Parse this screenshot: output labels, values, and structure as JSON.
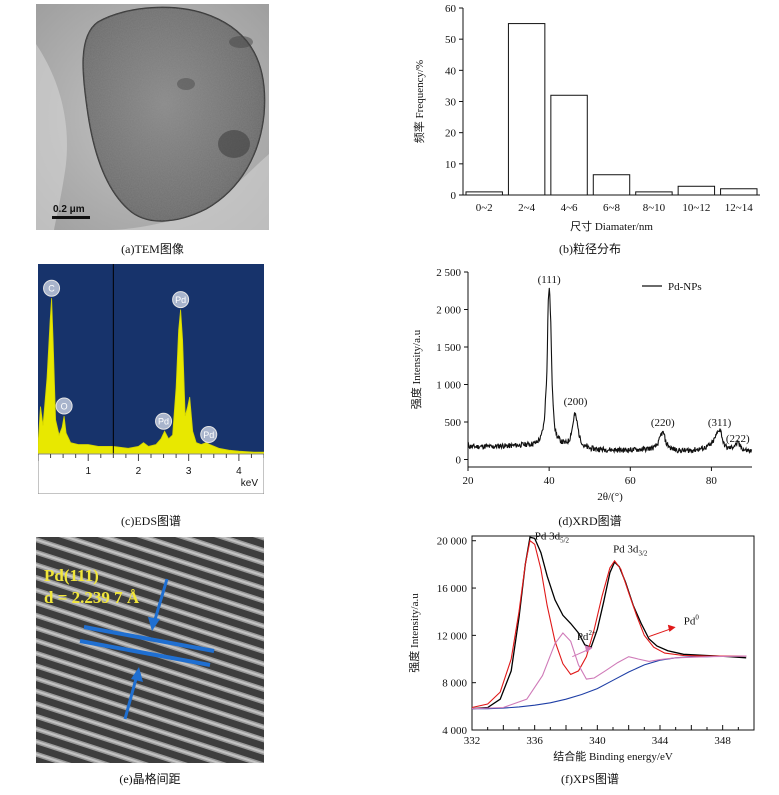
{
  "captions": {
    "a": "(a)TEM图像",
    "b": "(b)粒径分布",
    "c": "(c)EDS图谱",
    "d": "(d)XRD图谱",
    "e": "(e)晶格间距",
    "f": "(f)XPS图谱"
  },
  "tem": {
    "scale_label": "0.2 μm"
  },
  "lattice": {
    "plane": "Pd(111)",
    "spacing": "d = 2.239 7 Å"
  },
  "chart_data": [
    {
      "id": "size-distribution",
      "type": "bar",
      "categories": [
        "0~2",
        "2~4",
        "4~6",
        "6~8",
        "8~10",
        "10~12",
        "12~14"
      ],
      "values": [
        1,
        55,
        32,
        6.5,
        1,
        2.8,
        2
      ],
      "xlabel": "尺寸 Diamater/nm",
      "ylabel": "频率 Frequency/%",
      "ylim": [
        0,
        60
      ],
      "yticks": [
        0,
        10,
        20,
        30,
        40,
        50,
        60
      ]
    },
    {
      "id": "eds",
      "type": "area",
      "xlabel": "keV",
      "xlim": [
        0,
        4.5
      ],
      "xticks": [
        1,
        2,
        3,
        4
      ],
      "background": "#17336b",
      "fill": "#e8e800",
      "cursor_x": 1.5,
      "peaks": [
        {
          "label": "C",
          "x": 0.27
        },
        {
          "label": "O",
          "x": 0.52
        },
        {
          "label": "Pd",
          "x": 2.5
        },
        {
          "label": "Pd",
          "x": 2.84
        },
        {
          "label": "Pd",
          "x": 3.4
        }
      ],
      "points": [
        [
          0,
          0.05
        ],
        [
          0.05,
          0.25
        ],
        [
          0.1,
          0.15
        ],
        [
          0.18,
          0.4
        ],
        [
          0.24,
          0.7
        ],
        [
          0.27,
          0.82
        ],
        [
          0.3,
          0.6
        ],
        [
          0.35,
          0.18
        ],
        [
          0.42,
          0.1
        ],
        [
          0.48,
          0.14
        ],
        [
          0.52,
          0.2
        ],
        [
          0.56,
          0.11
        ],
        [
          0.65,
          0.06
        ],
        [
          0.8,
          0.05
        ],
        [
          1.0,
          0.05
        ],
        [
          1.2,
          0.04
        ],
        [
          1.5,
          0.04
        ],
        [
          1.8,
          0.03
        ],
        [
          2.0,
          0.04
        ],
        [
          2.1,
          0.06
        ],
        [
          2.2,
          0.04
        ],
        [
          2.35,
          0.05
        ],
        [
          2.45,
          0.08
        ],
        [
          2.52,
          0.12
        ],
        [
          2.6,
          0.08
        ],
        [
          2.68,
          0.1
        ],
        [
          2.75,
          0.35
        ],
        [
          2.8,
          0.65
        ],
        [
          2.84,
          0.76
        ],
        [
          2.88,
          0.6
        ],
        [
          2.93,
          0.2
        ],
        [
          2.98,
          0.25
        ],
        [
          3.02,
          0.3
        ],
        [
          3.08,
          0.12
        ],
        [
          3.15,
          0.06
        ],
        [
          3.25,
          0.05
        ],
        [
          3.35,
          0.06
        ],
        [
          3.42,
          0.05
        ],
        [
          3.6,
          0.03
        ],
        [
          3.8,
          0.02
        ],
        [
          4.0,
          0.015
        ],
        [
          4.3,
          0.01
        ],
        [
          4.5,
          0.01
        ]
      ]
    },
    {
      "id": "xrd",
      "type": "line",
      "xlabel": "2θ/(°)",
      "ylabel": "强度 Intensity/a.u",
      "xlim": [
        20,
        90
      ],
      "ylim": [
        -100,
        2500
      ],
      "xticks": [
        20,
        40,
        60,
        80
      ],
      "yticks": [
        0,
        500,
        1000,
        1500,
        2000,
        2500
      ],
      "ytick_labels": [
        "0",
        "500",
        "1 000",
        "1 500",
        "2 000",
        "2 500"
      ],
      "series": [
        {
          "name": "Pd-NPs",
          "color": "#111111"
        }
      ],
      "peaks": [
        {
          "label": "(111)",
          "x": 40,
          "y": 2250
        },
        {
          "label": "(200)",
          "x": 46.5,
          "y": 620
        },
        {
          "label": "(220)",
          "x": 68,
          "y": 340
        },
        {
          "label": "(311)",
          "x": 82,
          "y": 340
        },
        {
          "label": "(222)",
          "x": 86.5,
          "y": 130
        }
      ],
      "points": [
        [
          20,
          180
        ],
        [
          22,
          170
        ],
        [
          24,
          175
        ],
        [
          26,
          170
        ],
        [
          28,
          185
        ],
        [
          30,
          180
        ],
        [
          32,
          190
        ],
        [
          34,
          200
        ],
        [
          36,
          210
        ],
        [
          37,
          230
        ],
        [
          38,
          300
        ],
        [
          38.8,
          500
        ],
        [
          39.4,
          1100
        ],
        [
          39.8,
          2150
        ],
        [
          40.1,
          2300
        ],
        [
          40.4,
          1800
        ],
        [
          40.8,
          900
        ],
        [
          41.4,
          420
        ],
        [
          42,
          300
        ],
        [
          43,
          240
        ],
        [
          44,
          220
        ],
        [
          45,
          260
        ],
        [
          45.7,
          420
        ],
        [
          46.3,
          620
        ],
        [
          46.8,
          520
        ],
        [
          47.5,
          300
        ],
        [
          48.5,
          180
        ],
        [
          50,
          150
        ],
        [
          52,
          140
        ],
        [
          55,
          130
        ],
        [
          58,
          125
        ],
        [
          61,
          130
        ],
        [
          64,
          140
        ],
        [
          66,
          160
        ],
        [
          67,
          230
        ],
        [
          67.6,
          340
        ],
        [
          68.2,
          360
        ],
        [
          68.8,
          220
        ],
        [
          70,
          150
        ],
        [
          72,
          120
        ],
        [
          74,
          120
        ],
        [
          76,
          130
        ],
        [
          78,
          150
        ],
        [
          80,
          200
        ],
        [
          81,
          300
        ],
        [
          81.8,
          400
        ],
        [
          82.3,
          380
        ],
        [
          83,
          210
        ],
        [
          84,
          150
        ],
        [
          85,
          160
        ],
        [
          86,
          200
        ],
        [
          86.6,
          220
        ],
        [
          87.2,
          170
        ],
        [
          88,
          130
        ],
        [
          90,
          110
        ]
      ],
      "noise": 35
    },
    {
      "id": "xps",
      "type": "line",
      "xlabel": "结合能 Binding energy/eV",
      "ylabel": "强度 Intensity/a.u",
      "xlim": [
        332,
        350
      ],
      "ylim": [
        4000,
        20400
      ],
      "xticks": [
        332,
        336,
        340,
        344,
        348
      ],
      "yticks": [
        4000,
        8000,
        12000,
        16000,
        20000
      ],
      "ytick_labels": [
        "4 000",
        "8 000",
        "12 000",
        "16 000",
        "20 000"
      ],
      "annotations": [
        {
          "label": "Pd 3d",
          "sub": "5/2",
          "x": 337.1,
          "y": 20100
        },
        {
          "label": "Pd 3d",
          "sub": "3/2",
          "x": 342.1,
          "y": 19000
        },
        {
          "label": "Pd",
          "sup": "0",
          "x": 346.0,
          "y": 12900
        },
        {
          "label": "Pd",
          "sup": "2+",
          "x": 339.3,
          "y": 11600
        }
      ],
      "series": [
        {
          "name": "raw",
          "color": "#000000",
          "points": [
            [
              332,
              5800
            ],
            [
              333,
              5900
            ],
            [
              333.8,
              6600
            ],
            [
              334.5,
              9000
            ],
            [
              335,
              13500
            ],
            [
              335.4,
              18000
            ],
            [
              335.7,
              20300
            ],
            [
              336,
              20200
            ],
            [
              336.4,
              19000
            ],
            [
              336.8,
              17000
            ],
            [
              337.3,
              15000
            ],
            [
              337.8,
              13700
            ],
            [
              338.3,
              13000
            ],
            [
              338.8,
              12200
            ],
            [
              339.2,
              11200
            ],
            [
              339.6,
              11000
            ],
            [
              340,
              12500
            ],
            [
              340.4,
              14800
            ],
            [
              340.8,
              17300
            ],
            [
              341.1,
              18200
            ],
            [
              341.4,
              17800
            ],
            [
              341.8,
              16500
            ],
            [
              342.3,
              14500
            ],
            [
              342.8,
              13000
            ],
            [
              343.3,
              11700
            ],
            [
              343.8,
              11100
            ],
            [
              344.5,
              10700
            ],
            [
              345.5,
              10400
            ],
            [
              347,
              10300
            ],
            [
              348.5,
              10200
            ],
            [
              349.5,
              10100
            ]
          ]
        },
        {
          "name": "bg",
          "color": "#1f3fa6",
          "points": [
            [
              332,
              5800
            ],
            [
              333,
              5800
            ],
            [
              334,
              5850
            ],
            [
              335,
              5950
            ],
            [
              336,
              6100
            ],
            [
              337,
              6300
            ],
            [
              338,
              6600
            ],
            [
              339,
              7000
            ],
            [
              340,
              7500
            ],
            [
              341,
              8200
            ],
            [
              342,
              8900
            ],
            [
              343,
              9500
            ],
            [
              344,
              9900
            ],
            [
              345,
              10100
            ],
            [
              346,
              10200
            ],
            [
              347,
              10200
            ],
            [
              348,
              10250
            ],
            [
              349.5,
              10250
            ]
          ]
        },
        {
          "name": "pd0",
          "color": "#e01818",
          "points": [
            [
              332,
              5900
            ],
            [
              333,
              6200
            ],
            [
              333.8,
              7200
            ],
            [
              334.5,
              10000
            ],
            [
              335,
              14000
            ],
            [
              335.4,
              18000
            ],
            [
              335.7,
              20000
            ],
            [
              336,
              19700
            ],
            [
              336.4,
              17600
            ],
            [
              336.8,
              14500
            ],
            [
              337.3,
              11500
            ],
            [
              337.8,
              9600
            ],
            [
              338.3,
              8700
            ],
            [
              338.8,
              9000
            ],
            [
              339.3,
              10200
            ],
            [
              339.8,
              12500
            ],
            [
              340.3,
              15300
            ],
            [
              340.8,
              17700
            ],
            [
              341.1,
              18300
            ],
            [
              341.5,
              17600
            ],
            [
              342,
              15600
            ],
            [
              342.5,
              13700
            ],
            [
              343,
              12000
            ],
            [
              343.6,
              11000
            ],
            [
              344.3,
              10500
            ],
            [
              345.5,
              10300
            ],
            [
              347,
              10250
            ],
            [
              349.5,
              10250
            ]
          ]
        },
        {
          "name": "pd2",
          "color": "#cf7ab8",
          "points": [
            [
              332,
              5800
            ],
            [
              334,
              5900
            ],
            [
              335.5,
              6600
            ],
            [
              336.5,
              8600
            ],
            [
              337.3,
              11300
            ],
            [
              337.8,
              12200
            ],
            [
              338.3,
              11500
            ],
            [
              338.8,
              9500
            ],
            [
              339.3,
              8300
            ],
            [
              339.8,
              8400
            ],
            [
              340.5,
              9000
            ],
            [
              341.3,
              9700
            ],
            [
              342,
              10200
            ],
            [
              342.6,
              10000
            ],
            [
              343.3,
              9800
            ],
            [
              344,
              9950
            ],
            [
              345,
              10100
            ],
            [
              347,
              10200
            ],
            [
              349.5,
              10250
            ]
          ]
        }
      ]
    }
  ]
}
